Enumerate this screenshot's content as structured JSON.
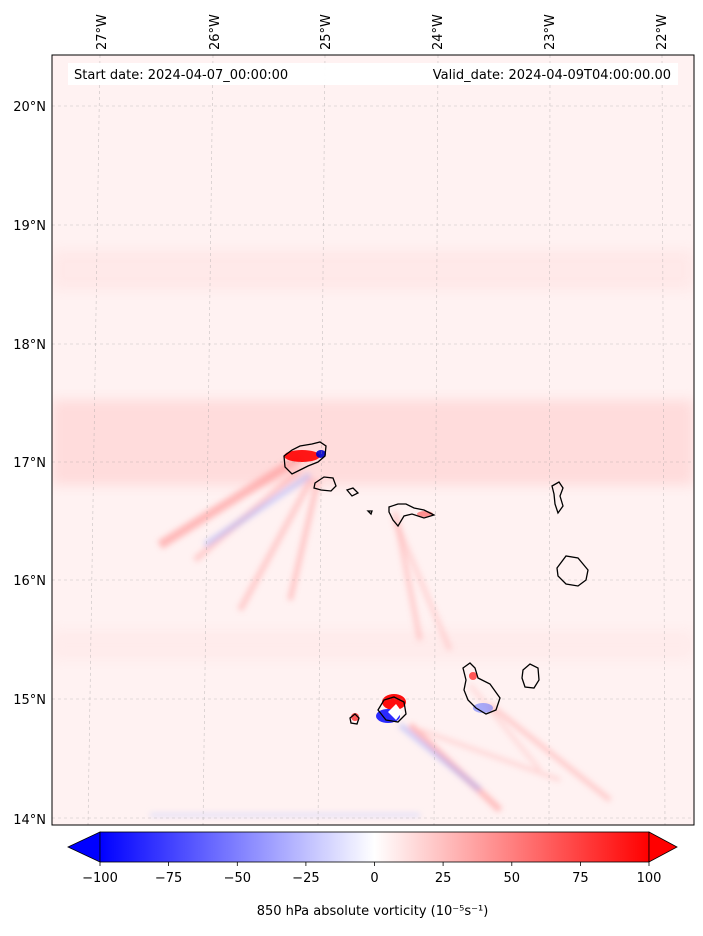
{
  "header": {
    "start_label": "Start date: 2024-04-07_00:00:00",
    "valid_label": "Valid_date: 2024-04-09T04:00:00.00"
  },
  "axes": {
    "lon_labels": [
      "27°W",
      "26°W",
      "25°W",
      "24°W",
      "23°W",
      "22°W"
    ],
    "lat_labels": [
      "20°N",
      "19°N",
      "18°N",
      "17°N",
      "16°N",
      "15°N",
      "14°N"
    ],
    "lon_range": [
      -27.4,
      -21.7
    ],
    "lat_range": [
      13.95,
      20.45
    ]
  },
  "colorbar": {
    "label": "850 hPa absolute vorticity (10⁻⁵s⁻¹)",
    "ticks": [
      "−100",
      "−75",
      "−50",
      "−25",
      "0",
      "25",
      "50",
      "75",
      "100"
    ],
    "vmin": -100,
    "vmax": 100,
    "extend": "both",
    "colormap": "bwr",
    "min_color": "#0000ff",
    "mid_color": "#ffffff",
    "max_color": "#ff0000"
  },
  "field": {
    "background_color": "#fff2f2",
    "band_color": "#ffd9d9",
    "positive_streak_color": "#ff8a8a",
    "negative_streak_color": "#9aa8ff"
  },
  "islands": [
    {
      "name": "Santo Antão"
    },
    {
      "name": "São Vicente"
    },
    {
      "name": "Santa Luzia"
    },
    {
      "name": "Branco"
    },
    {
      "name": "São Nicolau"
    },
    {
      "name": "Sal"
    },
    {
      "name": "Boa Vista"
    },
    {
      "name": "Maio"
    },
    {
      "name": "Santiago"
    },
    {
      "name": "Fogo"
    },
    {
      "name": "Brava"
    }
  ]
}
